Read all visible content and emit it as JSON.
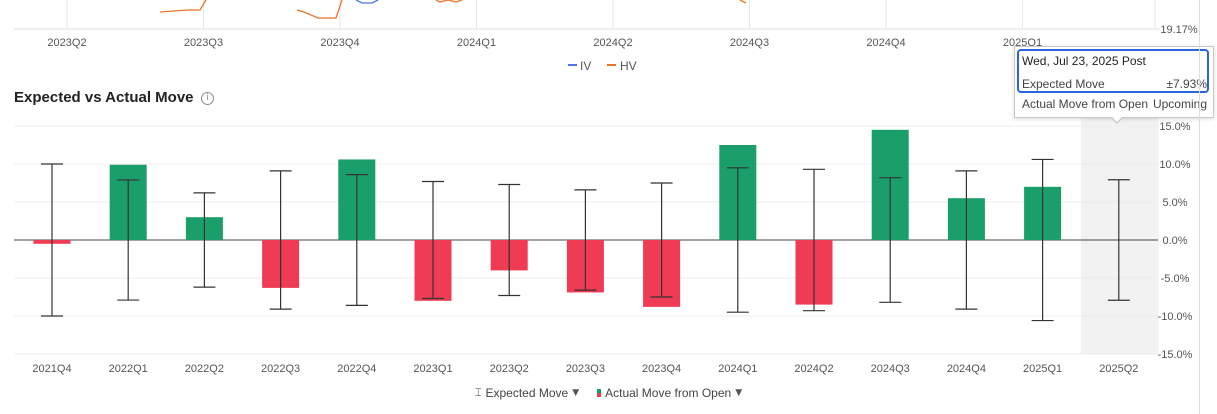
{
  "top_chart": {
    "x_labels": [
      "2023Q2",
      "2023Q3",
      "2023Q4",
      "2024Q1",
      "2024Q2",
      "2024Q3",
      "2024Q4",
      "2025Q1"
    ],
    "right_value": "19.17%",
    "legend": [
      {
        "name": "IV",
        "color": "#4a78e0"
      },
      {
        "name": "HV",
        "color": "#e8742a"
      }
    ]
  },
  "section": {
    "title": "Expected vs Actual Move",
    "info_icon": "info-icon"
  },
  "chart_data": {
    "type": "bar",
    "title": "Expected vs Actual Move",
    "categories": [
      "2021Q4",
      "2022Q1",
      "2022Q2",
      "2022Q3",
      "2022Q4",
      "2023Q1",
      "2023Q2",
      "2023Q3",
      "2023Q4",
      "2024Q1",
      "2024Q2",
      "2024Q3",
      "2024Q4",
      "2025Q1",
      "2025Q2"
    ],
    "series": [
      {
        "name": "Actual Move from Open",
        "values": [
          -0.5,
          9.9,
          3.0,
          -6.3,
          10.6,
          -8.0,
          -4.0,
          -6.9,
          -8.8,
          12.5,
          -8.5,
          14.5,
          5.5,
          7.0,
          null
        ]
      },
      {
        "name": "Expected Move",
        "values": [
          10.0,
          7.9,
          6.2,
          9.1,
          8.6,
          7.7,
          7.3,
          6.6,
          7.5,
          9.5,
          9.3,
          8.2,
          9.1,
          10.6,
          7.93
        ]
      }
    ],
    "y_ticks": [
      "15.0%",
      "10.0%",
      "5.0%",
      "0.0%",
      "-5.0%",
      "-10.0%",
      "-15.0%"
    ],
    "ylim": [
      -15,
      15
    ],
    "highlighted_category": "2025Q2",
    "colors": {
      "positive": "#1a9e6a",
      "negative": "#ef3b53",
      "range": "#333333",
      "highlight_band": "#f2f2f2"
    },
    "legend": {
      "items": [
        {
          "label": "Expected Move",
          "icon": "range-bar-icon"
        },
        {
          "label": "Actual Move from Open",
          "icon": "bar-swatch-icon"
        }
      ],
      "placement": "bottom-center"
    }
  },
  "tooltip": {
    "date": "Wed, Jul 23, 2025 Post",
    "rows": [
      {
        "label": "Expected Move",
        "value": "±7.93%"
      },
      {
        "label": "Actual Move from Open",
        "value": "Upcoming"
      }
    ]
  }
}
